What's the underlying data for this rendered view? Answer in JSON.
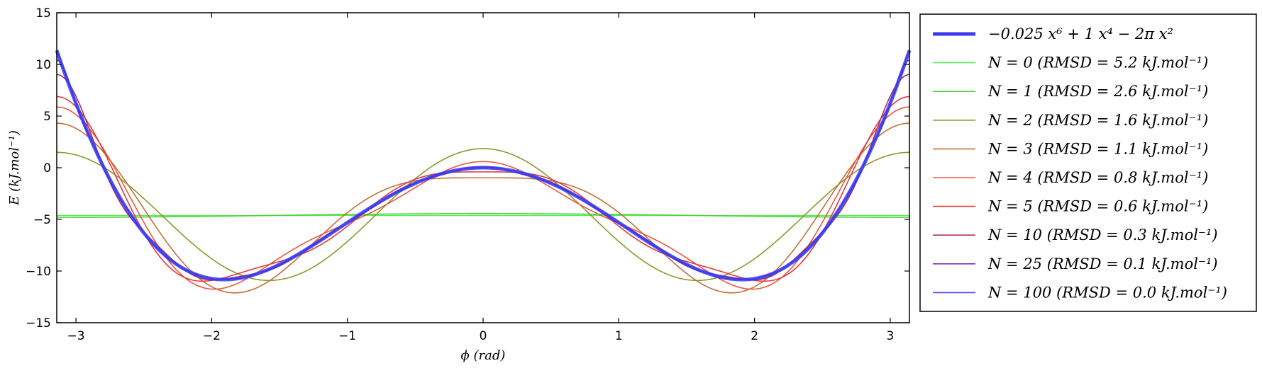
{
  "chart_data": {
    "type": "line",
    "xlabel": "ϕ (rad)",
    "ylabel": "E (kJ.mol⁻¹)",
    "xlim": [
      -3.14159,
      3.14159
    ],
    "ylim": [
      -15,
      15
    ],
    "x_ticks": [
      -3,
      -2,
      -1,
      0,
      1,
      2,
      3
    ],
    "x_tick_labels": [
      "−3",
      "−2",
      "−1",
      "0",
      "1",
      "2",
      "3"
    ],
    "y_ticks": [
      15,
      10,
      5,
      0,
      -5,
      -10,
      -15
    ],
    "y_tick_labels": [
      "15",
      "10",
      "5",
      "0",
      "−5",
      "−10",
      "−15"
    ],
    "grid": false,
    "legend_position": "outside-right",
    "series": [
      {
        "name": "−0.025 x⁶ + 1 x⁴ − 2π x²",
        "color": "#3a3af0",
        "kind": "exact",
        "n_terms": null
      },
      {
        "name": "N = 0 (RMSD = 5.2 kJ.mol⁻¹)",
        "color": "#55ee55",
        "kind": "fourier",
        "n_terms": 0
      },
      {
        "name": "N = 1 (RMSD = 2.6 kJ.mol⁻¹)",
        "color": "#55cc44",
        "kind": "fourier",
        "n_terms": 1
      },
      {
        "name": "N = 2 (RMSD = 1.6 kJ.mol⁻¹)",
        "color": "#8a9a2a",
        "kind": "fourier",
        "n_terms": 2
      },
      {
        "name": "N = 3 (RMSD = 1.1 kJ.mol⁻¹)",
        "color": "#c0703a",
        "kind": "fourier",
        "n_terms": 3
      },
      {
        "name": "N = 4 (RMSD = 0.8 kJ.mol⁻¹)",
        "color": "#e85a3a",
        "kind": "fourier",
        "n_terms": 4
      },
      {
        "name": "N = 5 (RMSD = 0.6 kJ.mol⁻¹)",
        "color": "#e03a3a",
        "kind": "fourier",
        "n_terms": 5
      },
      {
        "name": "N = 10 (RMSD = 0.3 kJ.mol⁻¹)",
        "color": "#b03060",
        "kind": "fourier",
        "n_terms": 10
      },
      {
        "name": "N = 25 (RMSD = 0.1 kJ.mol⁻¹)",
        "color": "#7a2ec0",
        "kind": "fourier",
        "n_terms": 25
      },
      {
        "name": "N = 100 (RMSD = 0.0 kJ.mol⁻¹)",
        "color": "#4a4af0",
        "kind": "fourier",
        "n_terms": 100
      }
    ]
  }
}
